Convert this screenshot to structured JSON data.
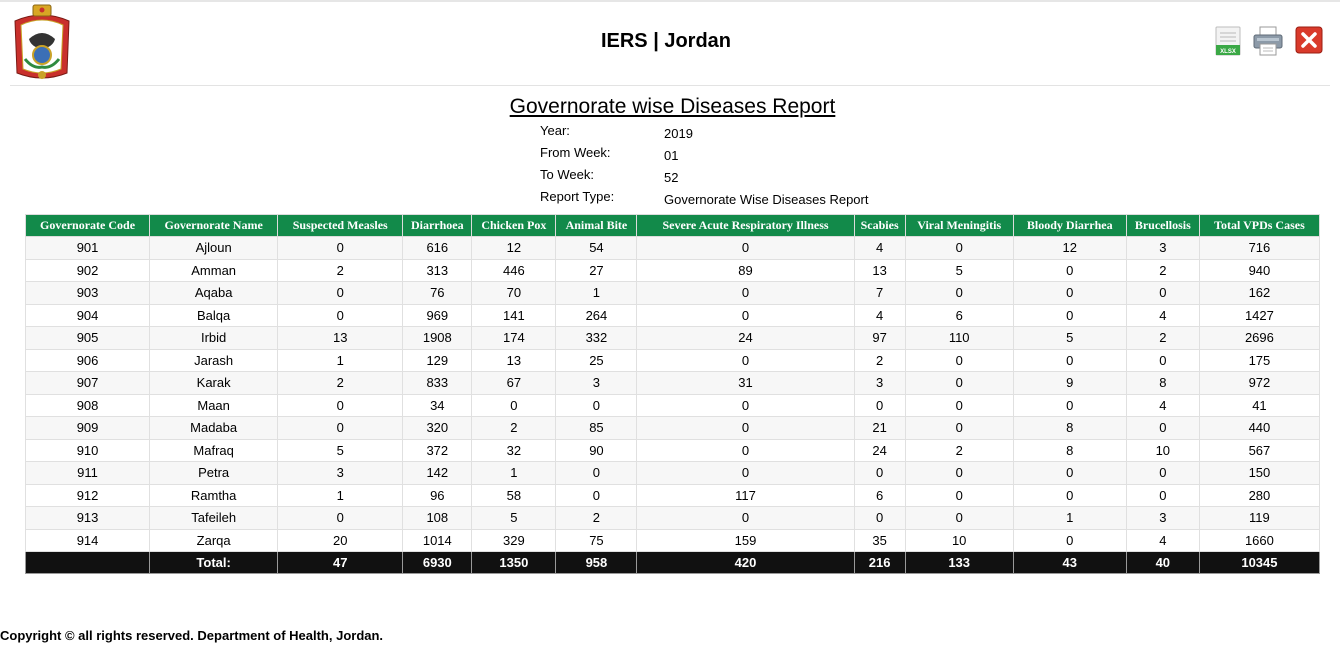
{
  "header": {
    "title": "IERS | Jordan",
    "export_icon_text": "XLSX"
  },
  "report": {
    "title": "Governorate wise Diseases Report",
    "params": [
      {
        "label": "Year:",
        "value": "2019"
      },
      {
        "label": "From Week:",
        "value": "01"
      },
      {
        "label": "To Week:",
        "value": "52"
      },
      {
        "label": "Report Type:",
        "value": "Governorate Wise Diseases Report"
      }
    ]
  },
  "table": {
    "columns": [
      "Governorate Code",
      "Governorate Name",
      "Suspected Measles",
      "Diarrhoea",
      "Chicken Pox",
      "Animal Bite",
      "Severe Acute Respiratory Illness",
      "Scabies",
      "Viral Meningitis",
      "Bloody Diarrhea",
      "Brucellosis",
      "Total VPDs Cases"
    ],
    "rows": [
      [
        "901",
        "Ajloun",
        "0",
        "616",
        "12",
        "54",
        "0",
        "4",
        "0",
        "12",
        "3",
        "716"
      ],
      [
        "902",
        "Amman",
        "2",
        "313",
        "446",
        "27",
        "89",
        "13",
        "5",
        "0",
        "2",
        "940"
      ],
      [
        "903",
        "Aqaba",
        "0",
        "76",
        "70",
        "1",
        "0",
        "7",
        "0",
        "0",
        "0",
        "162"
      ],
      [
        "904",
        "Balqa",
        "0",
        "969",
        "141",
        "264",
        "0",
        "4",
        "6",
        "0",
        "4",
        "1427"
      ],
      [
        "905",
        "Irbid",
        "13",
        "1908",
        "174",
        "332",
        "24",
        "97",
        "110",
        "5",
        "2",
        "2696"
      ],
      [
        "906",
        "Jarash",
        "1",
        "129",
        "13",
        "25",
        "0",
        "2",
        "0",
        "0",
        "0",
        "175"
      ],
      [
        "907",
        "Karak",
        "2",
        "833",
        "67",
        "3",
        "31",
        "3",
        "0",
        "9",
        "8",
        "972"
      ],
      [
        "908",
        "Maan",
        "0",
        "34",
        "0",
        "0",
        "0",
        "0",
        "0",
        "0",
        "4",
        "41"
      ],
      [
        "909",
        "Madaba",
        "0",
        "320",
        "2",
        "85",
        "0",
        "21",
        "0",
        "8",
        "0",
        "440"
      ],
      [
        "910",
        "Mafraq",
        "5",
        "372",
        "32",
        "90",
        "0",
        "24",
        "2",
        "8",
        "10",
        "567"
      ],
      [
        "911",
        "Petra",
        "3",
        "142",
        "1",
        "0",
        "0",
        "0",
        "0",
        "0",
        "0",
        "150"
      ],
      [
        "912",
        "Ramtha",
        "1",
        "96",
        "58",
        "0",
        "117",
        "6",
        "0",
        "0",
        "0",
        "280"
      ],
      [
        "913",
        "Tafeileh",
        "0",
        "108",
        "5",
        "2",
        "0",
        "0",
        "0",
        "1",
        "3",
        "119"
      ],
      [
        "914",
        "Zarqa",
        "20",
        "1014",
        "329",
        "75",
        "159",
        "35",
        "10",
        "0",
        "4",
        "1660"
      ]
    ],
    "totals": [
      "",
      "Total:",
      "47",
      "6930",
      "1350",
      "958",
      "420",
      "216",
      "133",
      "43",
      "40",
      "10345"
    ]
  },
  "footer": {
    "copyright": "Copyright © all rights reserved. Department of Health, Jordan."
  },
  "colors": {
    "header_green": "#128a4a",
    "total_row": "#111111",
    "close_red": "#d93a2b"
  }
}
